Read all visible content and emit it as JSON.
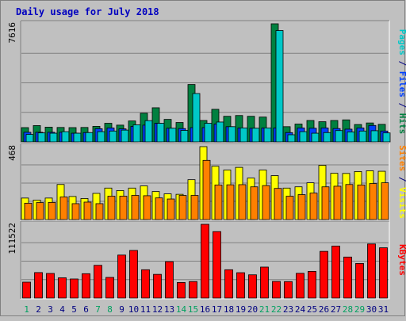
{
  "chart_data": {
    "type": "bar",
    "title": "Daily usage for July 2018",
    "categories": [
      "1",
      "2",
      "3",
      "4",
      "5",
      "6",
      "7",
      "8",
      "9",
      "10",
      "11",
      "12",
      "13",
      "14",
      "15",
      "16",
      "17",
      "18",
      "19",
      "20",
      "21",
      "22",
      "23",
      "24",
      "25",
      "26",
      "27",
      "28",
      "29",
      "30",
      "31"
    ],
    "weekend_days": [
      "1",
      "7",
      "8",
      "14",
      "15",
      "21",
      "22",
      "28",
      "29"
    ],
    "panels": [
      {
        "id": "hits-files-pages",
        "max_label": "7616",
        "ymax": 7616,
        "right_label_parts": [
          {
            "text": "Pages",
            "color": "#00c8c8"
          },
          {
            "text": " / ",
            "color": "#000080"
          },
          {
            "text": "Files",
            "color": "#0040ff"
          },
          {
            "text": " / ",
            "color": "#000080"
          },
          {
            "text": "Hits",
            "color": "#008040"
          }
        ],
        "series": [
          {
            "name": "Hits",
            "color": "#008040",
            "values": [
              920,
              1050,
              950,
              930,
              920,
              930,
              1000,
              1200,
              1080,
              1350,
              1850,
              2200,
              1450,
              1250,
              3700,
              1380,
              2100,
              1650,
              1700,
              1650,
              1600,
              7616,
              980,
              1150,
              1380,
              1300,
              1380,
              1420,
              1120,
              1220,
              1130
            ]
          },
          {
            "name": "Files",
            "color": "#0040ff",
            "values": [
              620,
              620,
              620,
              620,
              560,
              600,
              850,
              900,
              840,
              1000,
              1080,
              1200,
              880,
              860,
              920,
              920,
              1150,
              980,
              900,
              880,
              900,
              900,
              600,
              900,
              880,
              900,
              860,
              820,
              900,
              1060,
              700
            ]
          },
          {
            "name": "Pages",
            "color": "#00c8c8",
            "values": [
              480,
              580,
              560,
              660,
              560,
              600,
              660,
              700,
              760,
              1100,
              1370,
              1200,
              880,
              740,
              3120,
              1200,
              1280,
              980,
              900,
              880,
              900,
              7180,
              460,
              660,
              560,
              600,
              730,
              640,
              700,
              720,
              580
            ]
          }
        ]
      },
      {
        "id": "visits-sites",
        "max_label": "468",
        "ymax": 468,
        "right_label_parts": [
          {
            "text": "Sites",
            "color": "#ff8000"
          },
          {
            "text": " / ",
            "color": "#000080"
          },
          {
            "text": "Visits",
            "color": "#ffff00"
          }
        ],
        "series": [
          {
            "name": "Visits",
            "color": "#ffff00",
            "values": [
              138,
              125,
              138,
              225,
              148,
              135,
              168,
              202,
              186,
              202,
              216,
              180,
              165,
              162,
              256,
              468,
              342,
              318,
              335,
              266,
              318,
              282,
              202,
              210,
              236,
              348,
              297,
              296,
              308,
              313,
              310
            ]
          },
          {
            "name": "Sites",
            "color": "#ff8000",
            "values": [
              105,
              109,
              110,
              145,
              102,
              112,
              102,
              150,
              150,
              155,
              153,
              139,
              132,
              155,
              155,
              380,
              222,
              223,
              224,
              210,
              218,
              200,
              150,
              160,
              170,
              210,
              214,
              225,
              222,
              231,
              236
            ]
          }
        ]
      },
      {
        "id": "kbytes",
        "max_label": "111522",
        "ymax": 111522,
        "right_label_parts": [
          {
            "text": "KBytes",
            "color": "#ff0000"
          }
        ],
        "series": [
          {
            "name": "KBytes",
            "color": "#ff0000",
            "values": [
              24000,
              38500,
              37200,
              30600,
              28800,
              36800,
              49500,
              31200,
              65000,
              72000,
              42800,
              35800,
              55000,
              23500,
              24900,
              111522,
              100500,
              42800,
              38300,
              35100,
              46800,
              25100,
              24800,
              37400,
              40300,
              70600,
              78600,
              62000,
              52300,
              81800,
              76000
            ]
          }
        ]
      }
    ]
  }
}
